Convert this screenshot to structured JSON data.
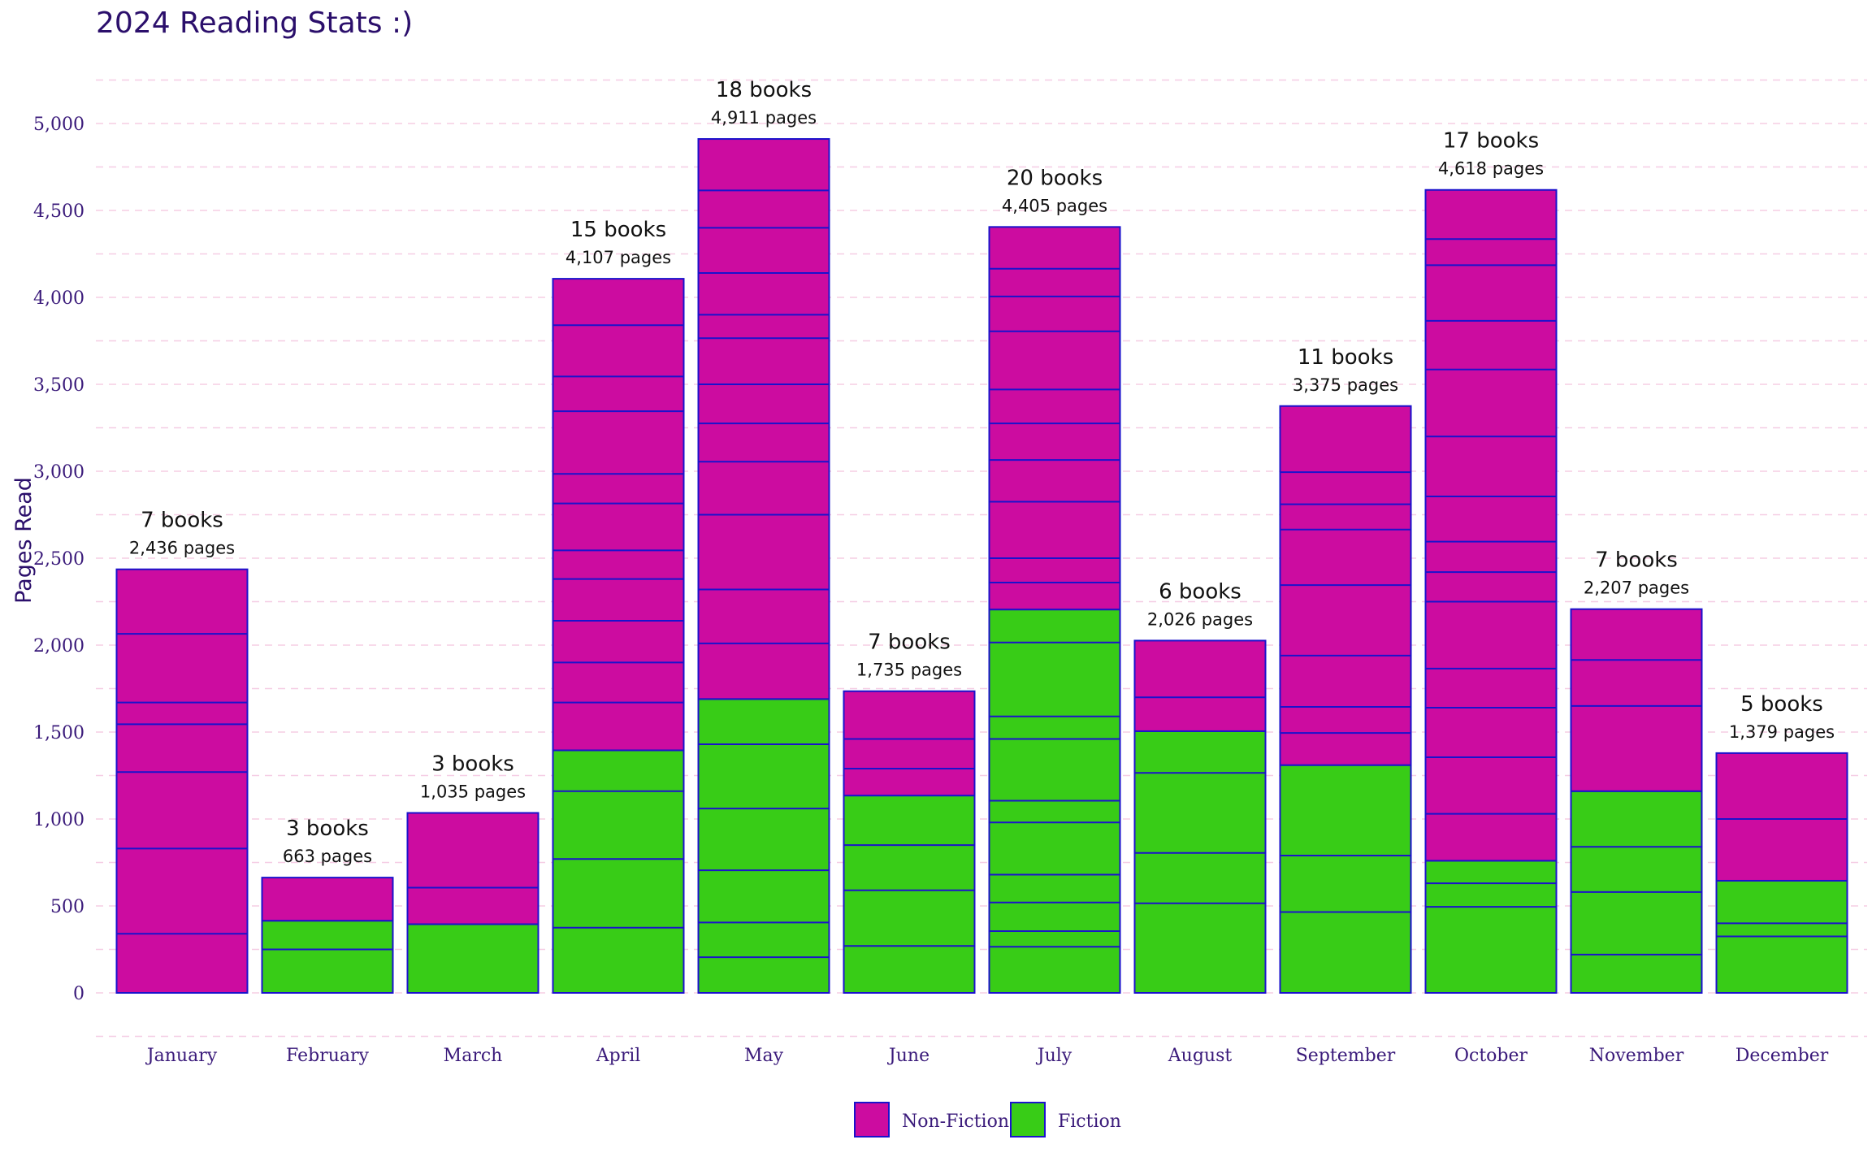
{
  "chart_data": {
    "type": "bar",
    "stacked": true,
    "title": "2024 Reading Stats :)",
    "ylabel": "Pages Read",
    "xlabel": "",
    "ylim": [
      -250,
      5250
    ],
    "yticks": [
      0,
      500,
      1000,
      1500,
      2000,
      2500,
      3000,
      3500,
      4000,
      4500,
      5000
    ],
    "ytick_labels": [
      "0",
      "500",
      "1,000",
      "1,500",
      "2,000",
      "2,500",
      "3,000",
      "3,500",
      "4,000",
      "4,500",
      "5,000"
    ],
    "grid": true,
    "legend_position": "bottom",
    "colors": {
      "Non-Fiction": "#cc0ca0",
      "Fiction": "#38cc17",
      "outline": "#1a12cc",
      "grid": "#f5cde4"
    },
    "categories": [
      "January",
      "February",
      "March",
      "April",
      "May",
      "June",
      "July",
      "August",
      "September",
      "October",
      "November",
      "December"
    ],
    "series": [
      {
        "name": "Fiction",
        "values": [
          0,
          415,
          395,
          1395,
          1690,
          1135,
          2205,
          1505,
          1310,
          760,
          1160,
          645
        ]
      },
      {
        "name": "Non-Fiction",
        "values": [
          2436,
          248,
          640,
          2712,
          3221,
          600,
          2200,
          521,
          2065,
          3858,
          1047,
          734
        ]
      }
    ],
    "book_boundaries": [
      [
        340,
        830,
        1270,
        1545,
        1670,
        2065
      ],
      [
        250
      ],
      [
        605
      ],
      [
        375,
        770,
        1160,
        1670,
        1900,
        2140,
        2380,
        2545,
        2815,
        2985,
        3345,
        3545,
        3840
      ],
      [
        205,
        405,
        705,
        1060,
        1430,
        2010,
        2320,
        2750,
        3055,
        3275,
        3500,
        3765,
        3900,
        4140,
        4400,
        4615
      ],
      [
        270,
        590,
        850,
        1290,
        1460
      ],
      [
        265,
        355,
        520,
        680,
        980,
        1105,
        1460,
        1590,
        2015,
        2360,
        2500,
        2825,
        3065,
        3275,
        3470,
        3805,
        4005,
        4165
      ],
      [
        515,
        805,
        1265,
        1700
      ],
      [
        465,
        790,
        1495,
        1645,
        1940,
        2345,
        2665,
        2810,
        2995
      ],
      [
        495,
        630,
        1030,
        1355,
        1640,
        1865,
        2250,
        2420,
        2595,
        2855,
        3200,
        3585,
        3865,
        4185,
        4335
      ],
      [
        220,
        580,
        840,
        1650,
        1915
      ],
      [
        325,
        400,
        1000
      ]
    ],
    "annotations": {
      "books": [
        "7 books",
        "3 books",
        "3 books",
        "15 books",
        "18 books",
        "7 books",
        "20 books",
        "6 books",
        "11 books",
        "17 books",
        "7 books",
        "5 books"
      ],
      "pages": [
        "2,436 pages",
        "663 pages",
        "1,035 pages",
        "4,107 pages",
        "4,911 pages",
        "1,735 pages",
        "4,405 pages",
        "2,026 pages",
        "3,375 pages",
        "4,618 pages",
        "2,207 pages",
        "1,379 pages"
      ]
    },
    "legend": [
      "Non-Fiction",
      "Fiction"
    ]
  }
}
